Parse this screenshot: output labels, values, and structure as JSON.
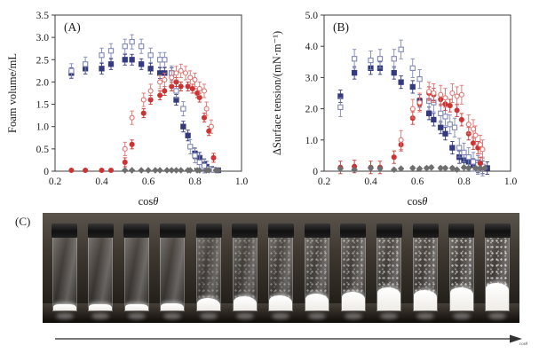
{
  "colors": {
    "navy": "#343a80",
    "slate_blue": "#8088b8",
    "red": "#cc3434",
    "light_red": "#e0736f",
    "gray": "#6e6e6e",
    "frame": "#3c3c3c"
  },
  "chart_data": [
    {
      "type": "scatter",
      "title": "(A)",
      "xlabel": {
        "prefix": "cos",
        "symbol": "θ"
      },
      "ylabel": "Foam volume/mL",
      "xlim": [
        0.2,
        1.0
      ],
      "ylim": [
        0,
        3.5
      ],
      "xticks": [
        "0.2",
        "0.4",
        "0.6",
        "0.8",
        "1.0"
      ],
      "yticks": [
        "0",
        "0.5",
        "1.0",
        "1.5",
        "2.0",
        "2.5",
        "3.0",
        "3.5"
      ],
      "grid": false,
      "legend": "none",
      "series": [
        {
          "name": "filled-squares",
          "marker": "square-filled",
          "color": "#343a80",
          "err": 0.12,
          "points": [
            [
              0.27,
              2.2
            ],
            [
              0.33,
              2.3
            ],
            [
              0.4,
              2.3
            ],
            [
              0.44,
              2.4
            ],
            [
              0.5,
              2.5
            ],
            [
              0.53,
              2.5
            ],
            [
              0.57,
              2.4
            ],
            [
              0.61,
              2.3
            ],
            [
              0.65,
              2.2
            ],
            [
              0.67,
              2.2
            ],
            [
              0.7,
              2.2
            ],
            [
              0.72,
              1.6
            ],
            [
              0.75,
              1.0
            ],
            [
              0.77,
              0.8
            ],
            [
              0.8,
              0.4
            ],
            [
              0.82,
              0.3
            ],
            [
              0.84,
              0.15
            ],
            [
              0.85,
              0.1
            ],
            [
              0.87,
              0.05
            ],
            [
              0.88,
              0.03
            ],
            [
              0.9,
              0.02
            ]
          ]
        },
        {
          "name": "open-squares",
          "marker": "square-open",
          "color": "#8088b8",
          "err": 0.16,
          "points": [
            [
              0.27,
              2.25
            ],
            [
              0.33,
              2.4
            ],
            [
              0.4,
              2.6
            ],
            [
              0.44,
              2.7
            ],
            [
              0.5,
              2.8
            ],
            [
              0.53,
              2.9
            ],
            [
              0.57,
              2.8
            ],
            [
              0.61,
              2.6
            ],
            [
              0.65,
              2.5
            ],
            [
              0.67,
              2.5
            ],
            [
              0.7,
              2.2
            ],
            [
              0.72,
              1.8
            ],
            [
              0.75,
              1.4
            ],
            [
              0.78,
              0.55
            ],
            [
              0.8,
              0.35
            ],
            [
              0.82,
              0.2
            ],
            [
              0.84,
              0.12
            ],
            [
              0.86,
              0.05
            ],
            [
              0.88,
              0.03
            ]
          ]
        },
        {
          "name": "filled-circles",
          "marker": "circle-filled",
          "color": "#cc3434",
          "err": 0.1,
          "points": [
            [
              0.27,
              0.02
            ],
            [
              0.33,
              0.02
            ],
            [
              0.4,
              0.02
            ],
            [
              0.44,
              0.02
            ],
            [
              0.5,
              0.2
            ],
            [
              0.53,
              0.6
            ],
            [
              0.58,
              1.3
            ],
            [
              0.61,
              1.6
            ],
            [
              0.65,
              1.7
            ],
            [
              0.67,
              1.8
            ],
            [
              0.7,
              1.9
            ],
            [
              0.72,
              2.0
            ],
            [
              0.74,
              1.9
            ],
            [
              0.77,
              1.9
            ],
            [
              0.79,
              1.85
            ],
            [
              0.81,
              1.75
            ],
            [
              0.82,
              1.65
            ],
            [
              0.84,
              1.2
            ],
            [
              0.86,
              0.9
            ],
            [
              0.88,
              0.3
            ]
          ]
        },
        {
          "name": "open-circles",
          "marker": "circle-open",
          "color": "#e0736f",
          "err": 0.15,
          "points": [
            [
              0.5,
              0.5
            ],
            [
              0.53,
              1.2
            ],
            [
              0.58,
              1.6
            ],
            [
              0.61,
              1.8
            ],
            [
              0.65,
              2.0
            ],
            [
              0.67,
              2.05
            ],
            [
              0.7,
              2.1
            ],
            [
              0.72,
              2.2
            ],
            [
              0.74,
              2.25
            ],
            [
              0.76,
              2.2
            ],
            [
              0.78,
              2.1
            ],
            [
              0.8,
              2.05
            ],
            [
              0.82,
              1.85
            ],
            [
              0.84,
              1.8
            ],
            [
              0.85,
              1.4
            ],
            [
              0.87,
              1.0
            ]
          ]
        },
        {
          "name": "diamonds",
          "marker": "diamond-filled",
          "color": "#6e6e6e",
          "err": 0.04,
          "points": [
            [
              0.5,
              0.02
            ],
            [
              0.53,
              0.02
            ],
            [
              0.57,
              0.02
            ],
            [
              0.6,
              0.02
            ],
            [
              0.63,
              0.02
            ],
            [
              0.65,
              0.02
            ],
            [
              0.68,
              0.02
            ],
            [
              0.7,
              0.02
            ],
            [
              0.72,
              0.02
            ],
            [
              0.74,
              0.02
            ],
            [
              0.77,
              0.02
            ],
            [
              0.78,
              0.02
            ],
            [
              0.81,
              0.02
            ],
            [
              0.82,
              0.02
            ],
            [
              0.85,
              0.02
            ],
            [
              0.86,
              0.02
            ],
            [
              0.89,
              0.02
            ],
            [
              0.9,
              0.02
            ]
          ]
        }
      ]
    },
    {
      "type": "scatter",
      "title": "(B)",
      "xlabel": {
        "prefix": "cos",
        "symbol": "θ"
      },
      "ylabel": "ΔSurface tension/(mN·m⁻¹)",
      "xlim": [
        0.2,
        1.0
      ],
      "ylim": [
        0,
        5.0
      ],
      "xticks": [
        "0.2",
        "0.4",
        "0.6",
        "0.8",
        "1.0"
      ],
      "yticks": [
        "0",
        "1.0",
        "2.0",
        "3.0",
        "4.0",
        "5.0"
      ],
      "grid": false,
      "legend": "none",
      "series": [
        {
          "name": "filled-squares",
          "marker": "square-filled",
          "color": "#343a80",
          "err": 0.2,
          "points": [
            [
              0.27,
              2.4
            ],
            [
              0.33,
              3.15
            ],
            [
              0.4,
              3.3
            ],
            [
              0.44,
              3.3
            ],
            [
              0.5,
              3.15
            ],
            [
              0.53,
              2.85
            ],
            [
              0.58,
              2.7
            ],
            [
              0.61,
              2.25
            ],
            [
              0.65,
              1.85
            ],
            [
              0.67,
              1.65
            ],
            [
              0.7,
              1.4
            ],
            [
              0.72,
              1.2
            ],
            [
              0.75,
              0.75
            ],
            [
              0.78,
              0.45
            ],
            [
              0.8,
              0.35
            ],
            [
              0.82,
              0.3
            ],
            [
              0.84,
              0.2
            ],
            [
              0.86,
              0.15
            ],
            [
              0.88,
              0.12
            ],
            [
              0.9,
              0.1
            ]
          ]
        },
        {
          "name": "open-squares",
          "marker": "square-open",
          "color": "#8088b8",
          "err": 0.3,
          "points": [
            [
              0.27,
              2.05
            ],
            [
              0.33,
              3.6
            ],
            [
              0.4,
              3.55
            ],
            [
              0.44,
              3.6
            ],
            [
              0.5,
              3.6
            ],
            [
              0.53,
              3.9
            ],
            [
              0.58,
              3.3
            ],
            [
              0.61,
              2.95
            ],
            [
              0.65,
              2.25
            ],
            [
              0.67,
              2.2
            ],
            [
              0.7,
              1.85
            ],
            [
              0.72,
              1.75
            ],
            [
              0.74,
              1.5
            ],
            [
              0.76,
              1.4
            ],
            [
              0.78,
              0.75
            ],
            [
              0.8,
              0.6
            ],
            [
              0.82,
              0.45
            ],
            [
              0.84,
              0.3
            ],
            [
              0.86,
              0.2
            ],
            [
              0.88,
              0.15
            ]
          ]
        },
        {
          "name": "filled-circles",
          "marker": "circle-filled",
          "color": "#cc3434",
          "err": 0.2,
          "points": [
            [
              0.27,
              0.12
            ],
            [
              0.33,
              0.15
            ],
            [
              0.4,
              0.12
            ],
            [
              0.44,
              0.12
            ],
            [
              0.5,
              0.45
            ],
            [
              0.53,
              0.85
            ],
            [
              0.58,
              1.7
            ],
            [
              0.61,
              2.15
            ],
            [
              0.65,
              2.5
            ],
            [
              0.67,
              2.45
            ],
            [
              0.7,
              2.3
            ],
            [
              0.72,
              2.15
            ],
            [
              0.74,
              2.1
            ],
            [
              0.77,
              1.95
            ],
            [
              0.79,
              1.65
            ],
            [
              0.82,
              1.2
            ],
            [
              0.84,
              0.9
            ],
            [
              0.86,
              0.75
            ],
            [
              0.87,
              0.25
            ]
          ]
        },
        {
          "name": "open-circles",
          "marker": "circle-open",
          "color": "#e0736f",
          "err": 0.3,
          "points": [
            [
              0.53,
              1.0
            ],
            [
              0.58,
              2.0
            ],
            [
              0.61,
              2.2
            ],
            [
              0.65,
              2.55
            ],
            [
              0.67,
              2.5
            ],
            [
              0.7,
              2.45
            ],
            [
              0.72,
              2.35
            ],
            [
              0.75,
              2.5
            ],
            [
              0.77,
              2.4
            ],
            [
              0.79,
              2.45
            ],
            [
              0.82,
              1.5
            ],
            [
              0.84,
              1.35
            ],
            [
              0.85,
              1.15
            ],
            [
              0.87,
              0.85
            ],
            [
              0.88,
              0.7
            ]
          ]
        },
        {
          "name": "diamonds",
          "marker": "diamond-filled",
          "color": "#6e6e6e",
          "err": 0.05,
          "points": [
            [
              0.27,
              0.08
            ],
            [
              0.33,
              0.05
            ],
            [
              0.4,
              0.1
            ],
            [
              0.44,
              0.08
            ],
            [
              0.5,
              0.05
            ],
            [
              0.53,
              0.08
            ],
            [
              0.58,
              0.1
            ],
            [
              0.61,
              0.08
            ],
            [
              0.64,
              0.1
            ],
            [
              0.66,
              0.12
            ],
            [
              0.7,
              0.1
            ],
            [
              0.72,
              0.1
            ],
            [
              0.75,
              0.1
            ],
            [
              0.77,
              0.05
            ],
            [
              0.8,
              0.12
            ],
            [
              0.82,
              0.1
            ],
            [
              0.85,
              0.1
            ],
            [
              0.87,
              0.1
            ],
            [
              0.89,
              0.1
            ]
          ]
        }
      ]
    }
  ],
  "panel_c": {
    "label": "(C)",
    "arrow_label": "cosθ",
    "vial_count": 13,
    "vials": [
      {
        "foam": 7,
        "haze": 0
      },
      {
        "foam": 7,
        "haze": 0
      },
      {
        "foam": 7,
        "haze": 0
      },
      {
        "foam": 8,
        "haze": 0
      },
      {
        "foam": 16,
        "haze": 0.35
      },
      {
        "foam": 18,
        "haze": 0.4
      },
      {
        "foam": 19,
        "haze": 0.45
      },
      {
        "foam": 22,
        "haze": 0.55
      },
      {
        "foam": 25,
        "haze": 0.6
      },
      {
        "foam": 30,
        "haze": 0.7
      },
      {
        "foam": 27,
        "haze": 0.7
      },
      {
        "foam": 31,
        "haze": 0.8
      },
      {
        "foam": 36,
        "haze": 0.85
      }
    ]
  }
}
